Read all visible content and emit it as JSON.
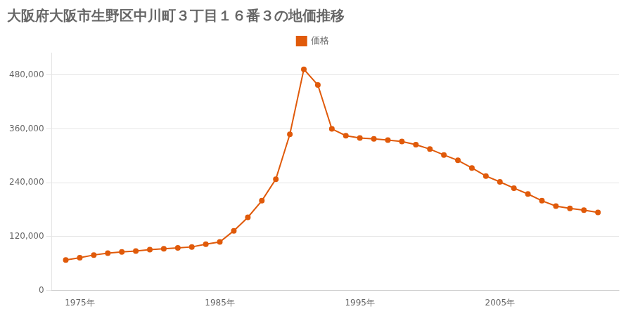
{
  "chart_data": {
    "type": "line",
    "title": "大阪府大阪市生野区中川町３丁目１６番３の地価推移",
    "x": [
      1974,
      1975,
      1976,
      1977,
      1978,
      1979,
      1980,
      1981,
      1982,
      1983,
      1984,
      1985,
      1986,
      1987,
      1988,
      1989,
      1990,
      1991,
      1992,
      1993,
      1994,
      1995,
      1996,
      1997,
      1998,
      1999,
      2000,
      2001,
      2002,
      2003,
      2004,
      2005,
      2006,
      2007,
      2008,
      2009,
      2010,
      2011,
      2012
    ],
    "series": [
      {
        "name": "価格",
        "color": "#e05a0a",
        "marker": "circle",
        "line_style": "solid",
        "values": [
          68000,
          73000,
          79000,
          83000,
          86000,
          88000,
          91000,
          93000,
          95000,
          97000,
          103000,
          108000,
          133000,
          163000,
          200000,
          248000,
          348000,
          493000,
          458000,
          360000,
          345000,
          340000,
          338000,
          335000,
          332000,
          325000,
          315000,
          302000,
          290000,
          273000,
          255000,
          242000,
          228000,
          215000,
          200000,
          188000,
          183000,
          179000,
          174000
        ]
      }
    ],
    "xlim": [
      1973,
      2013.5
    ],
    "xticks": [
      {
        "value": 1975,
        "label": "1975年"
      },
      {
        "value": 1985,
        "label": "1985年"
      },
      {
        "value": 1995,
        "label": "1995年"
      },
      {
        "value": 2005,
        "label": "2005年"
      }
    ],
    "ylim": [
      0,
      530000
    ],
    "yticks": [
      0,
      {
        "value": 120000,
        "label": "120,000"
      },
      {
        "value": 240000,
        "label": "240,000"
      },
      {
        "value": 360000,
        "label": "360,000"
      },
      {
        "value": 480000,
        "label": "480,000"
      }
    ],
    "grid": "y",
    "legend": "top"
  }
}
